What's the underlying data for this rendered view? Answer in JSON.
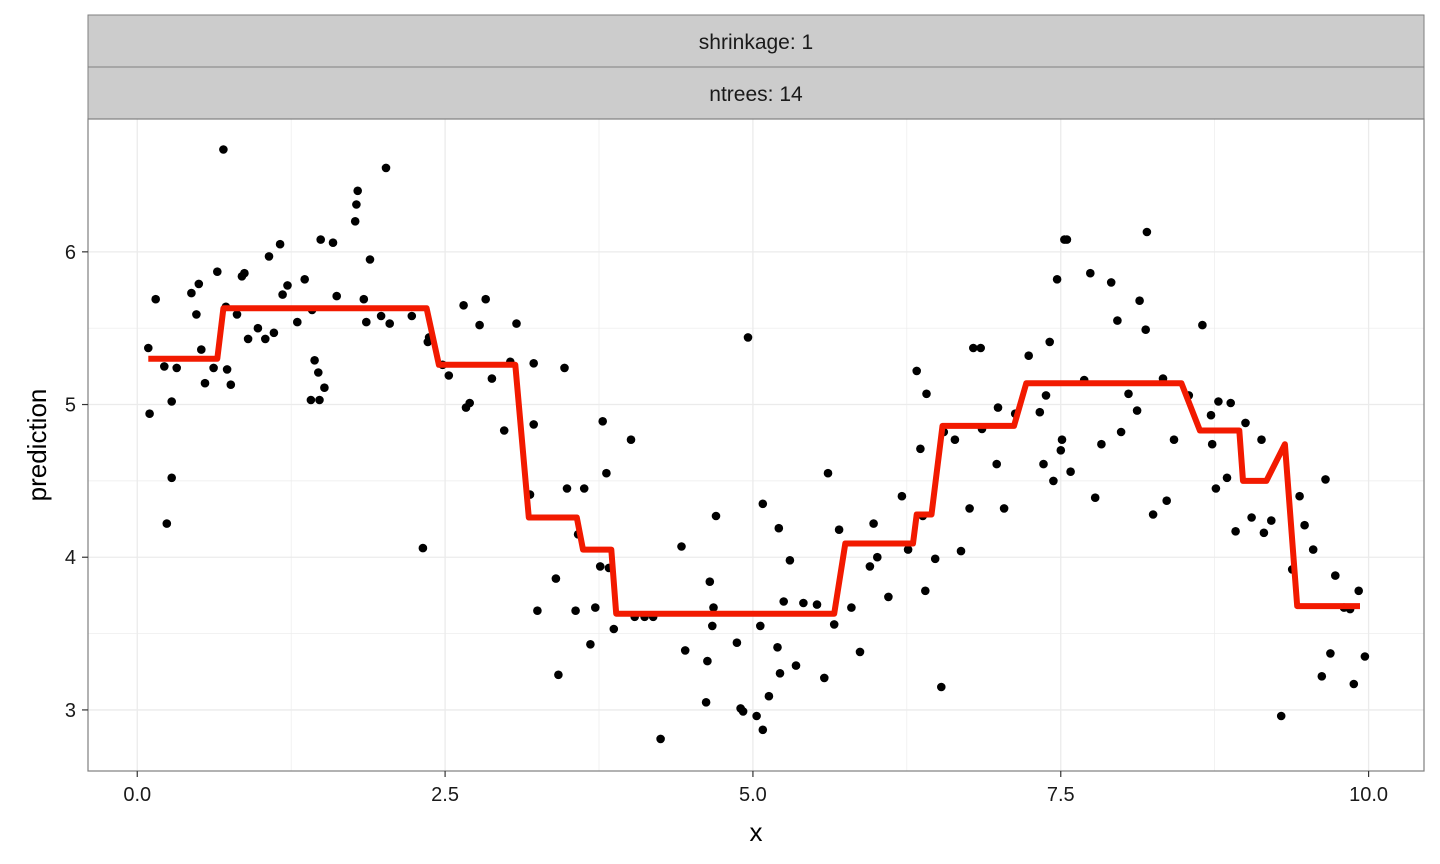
{
  "chart_data": {
    "type": "scatter",
    "facet_strips": [
      "shrinkage: 1",
      "ntrees: 14"
    ],
    "xlabel": "x",
    "ylabel": "prediction",
    "xlim": [
      -0.4,
      10.45
    ],
    "ylim": [
      2.6,
      6.87
    ],
    "x_ticks": [
      0,
      2.5,
      5,
      7.5,
      10
    ],
    "x_tick_labels": [
      "0.0",
      "2.5",
      "5.0",
      "7.5",
      "10.0"
    ],
    "y_ticks": [
      3,
      4,
      5,
      6
    ],
    "y_tick_labels": [
      "3",
      "4",
      "5",
      "6"
    ],
    "grid": true,
    "colors": {
      "points": "#000000",
      "line": "#f21a00",
      "strip": "#cccccc",
      "grid": "#ebebeb"
    },
    "series": [
      {
        "kind": "points",
        "points": [
          [
            0.09,
            5.37
          ],
          [
            0.1,
            4.94
          ],
          [
            0.15,
            5.69
          ],
          [
            0.22,
            5.25
          ],
          [
            0.24,
            4.22
          ],
          [
            0.28,
            4.52
          ],
          [
            0.28,
            5.02
          ],
          [
            0.32,
            5.24
          ],
          [
            0.44,
            5.73
          ],
          [
            0.48,
            5.59
          ],
          [
            0.5,
            5.79
          ],
          [
            0.52,
            5.36
          ],
          [
            0.55,
            5.14
          ],
          [
            0.62,
            5.24
          ],
          [
            0.65,
            5.87
          ],
          [
            0.7,
            6.67
          ],
          [
            0.72,
            5.64
          ],
          [
            0.73,
            5.23
          ],
          [
            0.76,
            5.13
          ],
          [
            0.81,
            5.59
          ],
          [
            0.85,
            5.84
          ],
          [
            0.87,
            5.86
          ],
          [
            0.9,
            5.43
          ],
          [
            0.98,
            5.5
          ],
          [
            1.04,
            5.43
          ],
          [
            1.07,
            5.97
          ],
          [
            1.11,
            5.47
          ],
          [
            1.16,
            6.05
          ],
          [
            1.18,
            5.72
          ],
          [
            1.22,
            5.78
          ],
          [
            1.3,
            5.54
          ],
          [
            1.36,
            5.82
          ],
          [
            1.41,
            5.03
          ],
          [
            1.42,
            5.62
          ],
          [
            1.44,
            5.29
          ],
          [
            1.47,
            5.21
          ],
          [
            1.48,
            5.03
          ],
          [
            1.49,
            6.08
          ],
          [
            1.52,
            5.11
          ],
          [
            1.59,
            6.06
          ],
          [
            1.62,
            5.71
          ],
          [
            1.77,
            6.2
          ],
          [
            1.78,
            6.31
          ],
          [
            1.79,
            6.4
          ],
          [
            1.84,
            5.69
          ],
          [
            1.86,
            5.54
          ],
          [
            1.89,
            5.95
          ],
          [
            1.98,
            5.58
          ],
          [
            2.02,
            6.55
          ],
          [
            2.05,
            5.53
          ],
          [
            2.23,
            5.58
          ],
          [
            2.32,
            4.06
          ],
          [
            2.36,
            5.41
          ],
          [
            2.37,
            5.44
          ],
          [
            2.48,
            5.26
          ],
          [
            2.53,
            5.19
          ],
          [
            2.65,
            5.65
          ],
          [
            2.67,
            4.98
          ],
          [
            2.7,
            5.01
          ],
          [
            2.78,
            5.52
          ],
          [
            2.83,
            5.69
          ],
          [
            2.88,
            5.17
          ],
          [
            2.98,
            4.83
          ],
          [
            3.03,
            5.28
          ],
          [
            3.08,
            5.53
          ],
          [
            3.19,
            4.41
          ],
          [
            3.22,
            5.27
          ],
          [
            3.22,
            4.87
          ],
          [
            3.25,
            3.65
          ],
          [
            3.4,
            3.86
          ],
          [
            3.42,
            3.23
          ],
          [
            3.47,
            5.24
          ],
          [
            3.49,
            4.45
          ],
          [
            3.56,
            3.65
          ],
          [
            3.58,
            4.15
          ],
          [
            3.63,
            4.45
          ],
          [
            3.68,
            3.43
          ],
          [
            3.72,
            3.67
          ],
          [
            3.76,
            3.94
          ],
          [
            3.78,
            4.89
          ],
          [
            3.81,
            4.55
          ],
          [
            3.83,
            3.93
          ],
          [
            3.87,
            3.53
          ],
          [
            4.01,
            4.77
          ],
          [
            4.04,
            3.62
          ],
          [
            4.04,
            3.61
          ],
          [
            4.12,
            3.61
          ],
          [
            4.19,
            3.61
          ],
          [
            4.25,
            2.81
          ],
          [
            4.42,
            4.07
          ],
          [
            4.45,
            3.39
          ],
          [
            4.62,
            3.05
          ],
          [
            4.63,
            3.32
          ],
          [
            4.65,
            3.84
          ],
          [
            4.67,
            3.55
          ],
          [
            4.68,
            3.67
          ],
          [
            4.7,
            4.27
          ],
          [
            4.87,
            3.44
          ],
          [
            4.9,
            3.01
          ],
          [
            4.92,
            2.99
          ],
          [
            4.96,
            5.44
          ],
          [
            5.03,
            2.96
          ],
          [
            5.06,
            3.55
          ],
          [
            5.08,
            4.35
          ],
          [
            5.08,
            2.87
          ],
          [
            5.13,
            3.09
          ],
          [
            5.2,
            3.41
          ],
          [
            5.21,
            4.19
          ],
          [
            5.22,
            3.24
          ],
          [
            5.25,
            3.71
          ],
          [
            5.3,
            3.98
          ],
          [
            5.35,
            3.29
          ],
          [
            5.41,
            3.7
          ],
          [
            5.52,
            3.69
          ],
          [
            5.58,
            3.21
          ],
          [
            5.61,
            4.55
          ],
          [
            5.66,
            3.56
          ],
          [
            5.7,
            4.18
          ],
          [
            5.8,
            3.67
          ],
          [
            5.87,
            3.38
          ],
          [
            5.95,
            3.94
          ],
          [
            5.98,
            4.22
          ],
          [
            6.01,
            4.0
          ],
          [
            6.1,
            3.74
          ],
          [
            6.21,
            4.4
          ],
          [
            6.26,
            4.05
          ],
          [
            6.33,
            5.22
          ],
          [
            6.36,
            4.71
          ],
          [
            6.38,
            4.27
          ],
          [
            6.4,
            3.78
          ],
          [
            6.41,
            5.07
          ],
          [
            6.48,
            3.99
          ],
          [
            6.53,
            3.15
          ],
          [
            6.55,
            4.82
          ],
          [
            6.64,
            4.77
          ],
          [
            6.69,
            4.04
          ],
          [
            6.76,
            4.32
          ],
          [
            6.79,
            5.37
          ],
          [
            6.85,
            5.37
          ],
          [
            6.86,
            4.84
          ],
          [
            6.98,
            4.61
          ],
          [
            6.99,
            4.98
          ],
          [
            7.04,
            4.32
          ],
          [
            7.13,
            4.94
          ],
          [
            7.24,
            5.32
          ],
          [
            7.33,
            4.95
          ],
          [
            7.36,
            4.61
          ],
          [
            7.38,
            5.06
          ],
          [
            7.41,
            5.41
          ],
          [
            7.44,
            4.5
          ],
          [
            7.47,
            5.82
          ],
          [
            7.5,
            4.7
          ],
          [
            7.51,
            4.77
          ],
          [
            7.53,
            6.08
          ],
          [
            7.55,
            6.08
          ],
          [
            7.58,
            4.56
          ],
          [
            7.69,
            5.16
          ],
          [
            7.74,
            5.86
          ],
          [
            7.78,
            4.39
          ],
          [
            7.83,
            4.74
          ],
          [
            7.91,
            5.8
          ],
          [
            7.96,
            5.55
          ],
          [
            7.99,
            4.82
          ],
          [
            8.05,
            5.07
          ],
          [
            8.12,
            4.96
          ],
          [
            8.14,
            5.68
          ],
          [
            8.19,
            5.49
          ],
          [
            8.2,
            6.13
          ],
          [
            8.25,
            4.28
          ],
          [
            8.33,
            5.17
          ],
          [
            8.36,
            4.37
          ],
          [
            8.42,
            4.77
          ],
          [
            8.54,
            5.06
          ],
          [
            8.65,
            5.52
          ],
          [
            8.72,
            4.93
          ],
          [
            8.73,
            4.74
          ],
          [
            8.76,
            4.45
          ],
          [
            8.78,
            5.02
          ],
          [
            8.85,
            4.52
          ],
          [
            8.88,
            5.01
          ],
          [
            8.92,
            4.17
          ],
          [
            9.0,
            4.88
          ],
          [
            9.05,
            4.26
          ],
          [
            9.13,
            4.77
          ],
          [
            9.15,
            4.16
          ],
          [
            9.21,
            4.24
          ],
          [
            9.29,
            2.96
          ],
          [
            9.38,
            3.92
          ],
          [
            9.44,
            4.4
          ],
          [
            9.48,
            4.21
          ],
          [
            9.55,
            4.05
          ],
          [
            9.62,
            3.22
          ],
          [
            9.65,
            4.51
          ],
          [
            9.69,
            3.37
          ],
          [
            9.73,
            3.88
          ],
          [
            9.8,
            3.67
          ],
          [
            9.85,
            3.66
          ],
          [
            9.88,
            3.17
          ],
          [
            9.92,
            3.78
          ],
          [
            9.97,
            3.35
          ]
        ]
      },
      {
        "kind": "line",
        "points": [
          [
            0.09,
            5.3
          ],
          [
            0.65,
            5.3
          ],
          [
            0.7,
            5.63
          ],
          [
            2.35,
            5.63
          ],
          [
            2.45,
            5.26
          ],
          [
            3.07,
            5.26
          ],
          [
            3.18,
            4.26
          ],
          [
            3.57,
            4.26
          ],
          [
            3.62,
            4.05
          ],
          [
            3.85,
            4.05
          ],
          [
            3.89,
            3.63
          ],
          [
            5.66,
            3.63
          ],
          [
            5.75,
            4.09
          ],
          [
            6.3,
            4.09
          ],
          [
            6.33,
            4.28
          ],
          [
            6.45,
            4.28
          ],
          [
            6.54,
            4.86
          ],
          [
            7.12,
            4.86
          ],
          [
            7.22,
            5.14
          ],
          [
            8.48,
            5.14
          ],
          [
            8.63,
            4.83
          ],
          [
            8.95,
            4.83
          ],
          [
            8.98,
            4.5
          ],
          [
            9.17,
            4.5
          ],
          [
            9.32,
            4.74
          ],
          [
            9.42,
            3.68
          ],
          [
            9.93,
            3.68
          ]
        ]
      }
    ]
  }
}
